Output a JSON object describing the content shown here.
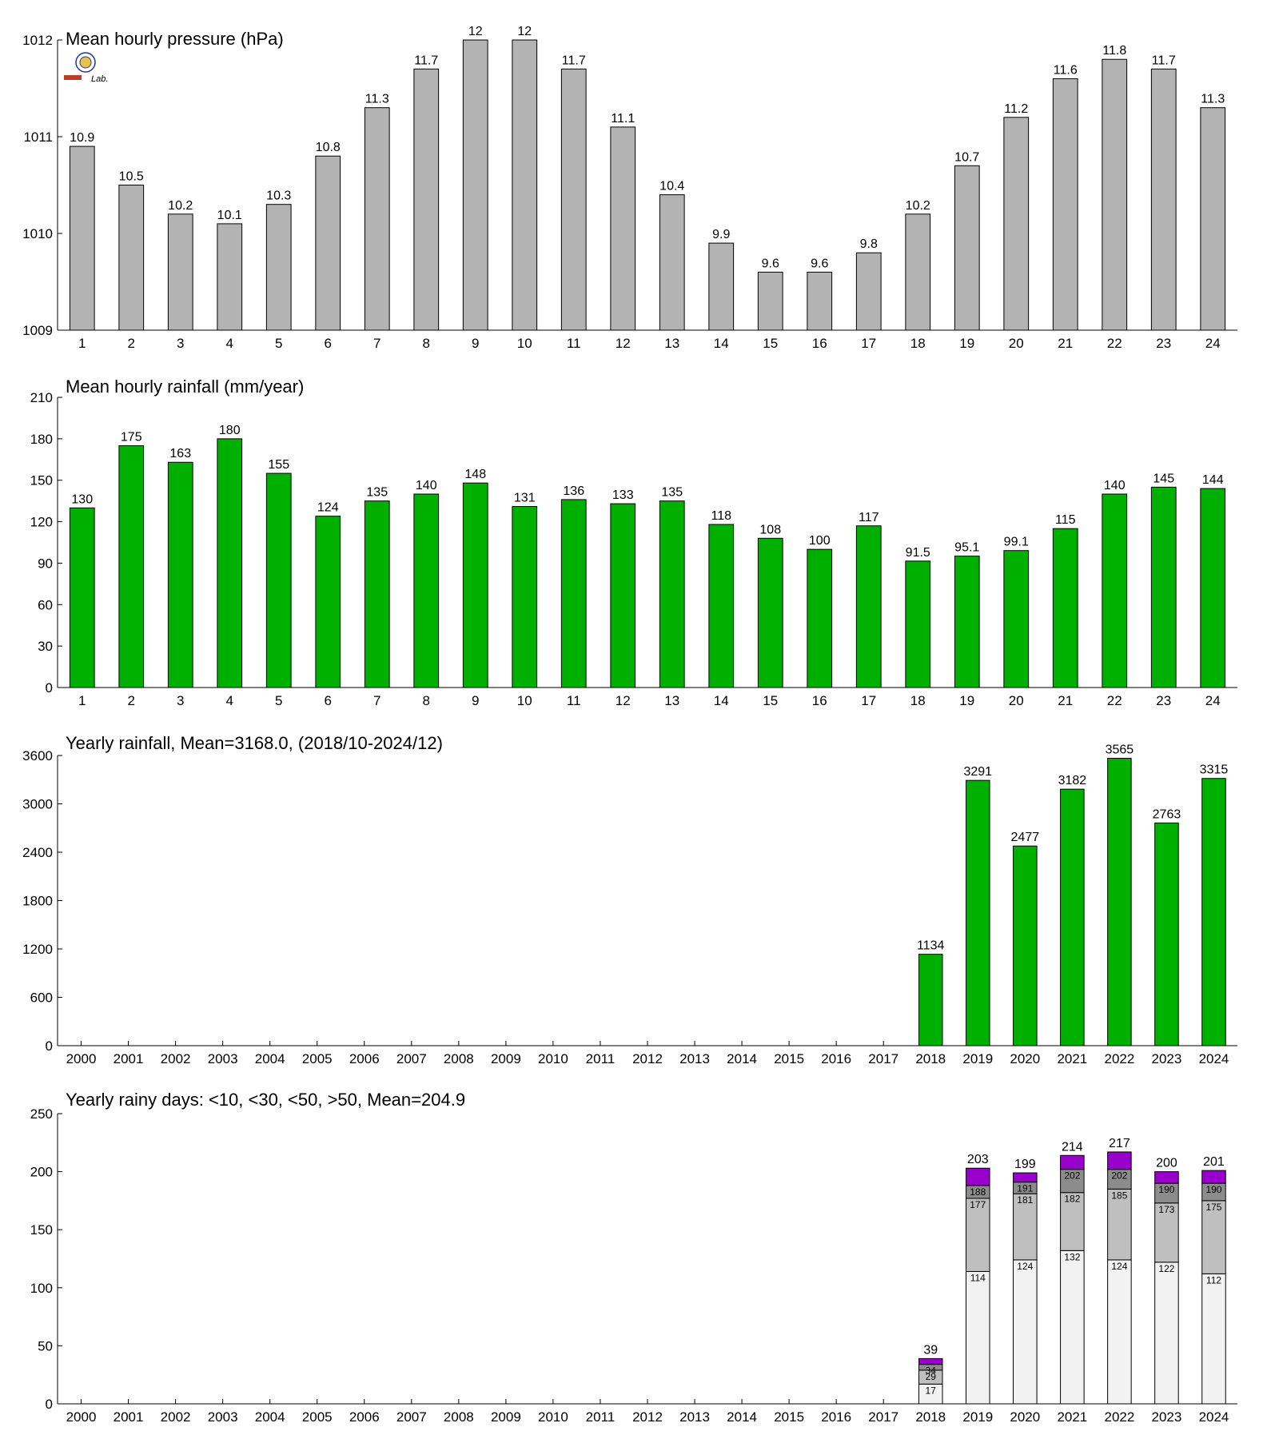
{
  "colors": {
    "pressure_bar": "#b3b3b3",
    "rain_bar": "#00b000",
    "days_lt10": "#f2f2f2",
    "days_lt30": "#bfbfbf",
    "days_lt50": "#8c8c8c",
    "days_gt50": "#9900cc",
    "outline": "#000000"
  },
  "logo": {
    "icon": "lab-seal-icon",
    "text": "Lab."
  },
  "chart_data": [
    {
      "id": "pressure",
      "type": "bar",
      "title": "Mean hourly pressure (hPa)",
      "categories": [
        "1",
        "2",
        "3",
        "4",
        "5",
        "6",
        "7",
        "8",
        "9",
        "10",
        "11",
        "12",
        "13",
        "14",
        "15",
        "16",
        "17",
        "18",
        "19",
        "20",
        "21",
        "22",
        "23",
        "24"
      ],
      "values": [
        1010.9,
        1010.5,
        1010.2,
        1010.1,
        1010.3,
        1010.8,
        1011.3,
        1011.7,
        1012.0,
        1012.0,
        1011.7,
        1011.1,
        1010.4,
        1009.9,
        1009.6,
        1009.6,
        1009.8,
        1010.2,
        1010.7,
        1011.2,
        1011.6,
        1011.8,
        1011.7,
        1011.3
      ],
      "labels": [
        "10.9",
        "10.5",
        "10.2",
        "10.1",
        "10.3",
        "10.8",
        "11.3",
        "11.7",
        "12",
        "12",
        "11.7",
        "11.1",
        "10.4",
        "9.9",
        "9.6",
        "9.6",
        "9.8",
        "10.2",
        "10.7",
        "11.2",
        "11.6",
        "11.8",
        "11.7",
        "11.3"
      ],
      "ylim": [
        1009,
        1012
      ],
      "yticks": [
        1009,
        1010,
        1011,
        1012
      ],
      "ytick_labels": [
        "1009",
        "1010",
        "1011",
        "1012"
      ],
      "xlabel": "",
      "ylabel": "",
      "grid": false
    },
    {
      "id": "hourly_rain",
      "type": "bar",
      "title": "Mean hourly rainfall (mm/year)",
      "categories": [
        "1",
        "2",
        "3",
        "4",
        "5",
        "6",
        "7",
        "8",
        "9",
        "10",
        "11",
        "12",
        "13",
        "14",
        "15",
        "16",
        "17",
        "18",
        "19",
        "20",
        "21",
        "22",
        "23",
        "24"
      ],
      "values": [
        130,
        175,
        163,
        180,
        155,
        124,
        135,
        140,
        148,
        131,
        136,
        133,
        135,
        118,
        108,
        100,
        117,
        91.5,
        95.1,
        99.1,
        115,
        140,
        145,
        144
      ],
      "labels": [
        "130",
        "175",
        "163",
        "180",
        "155",
        "124",
        "135",
        "140",
        "148",
        "131",
        "136",
        "133",
        "135",
        "118",
        "108",
        "100",
        "117",
        "91.5",
        "95.1",
        "99.1",
        "115",
        "140",
        "145",
        "144"
      ],
      "ylim": [
        0,
        210
      ],
      "yticks": [
        0,
        30,
        60,
        90,
        120,
        150,
        180,
        210
      ],
      "ytick_labels": [
        "0",
        "30",
        "60",
        "90",
        "120",
        "150",
        "180",
        "210"
      ],
      "xlabel": "",
      "ylabel": "",
      "grid": false
    },
    {
      "id": "yearly_rain",
      "type": "bar",
      "title": "Yearly rainfall, Mean=3168.0, (2018/10-2024/12)",
      "categories": [
        "2000",
        "2001",
        "2002",
        "2003",
        "2004",
        "2005",
        "2006",
        "2007",
        "2008",
        "2009",
        "2010",
        "2011",
        "2012",
        "2013",
        "2014",
        "2015",
        "2016",
        "2017",
        "2018",
        "2019",
        "2020",
        "2021",
        "2022",
        "2023",
        "2024"
      ],
      "values": [
        null,
        null,
        null,
        null,
        null,
        null,
        null,
        null,
        null,
        null,
        null,
        null,
        null,
        null,
        null,
        null,
        null,
        null,
        1134,
        3291,
        2477,
        3182,
        3565,
        2763,
        3315
      ],
      "labels": [
        "",
        "",
        "",
        "",
        "",
        "",
        "",
        "",
        "",
        "",
        "",
        "",
        "",
        "",
        "",
        "",
        "",
        "",
        "1134",
        "3291",
        "2477",
        "3182",
        "3565",
        "2763",
        "3315"
      ],
      "ylim": [
        0,
        3600
      ],
      "yticks": [
        0,
        600,
        1200,
        1800,
        2400,
        3000,
        3600
      ],
      "ytick_labels": [
        "0",
        "600",
        "1200",
        "1800",
        "2400",
        "3000",
        "3600"
      ],
      "xlabel": "",
      "ylabel": "",
      "grid": false
    },
    {
      "id": "rainy_days",
      "type": "bar",
      "stacked": true,
      "title": "Yearly rainy days: <10, <30, <50, >50, Mean=204.9",
      "categories": [
        "2000",
        "2001",
        "2002",
        "2003",
        "2004",
        "2005",
        "2006",
        "2007",
        "2008",
        "2009",
        "2010",
        "2011",
        "2012",
        "2013",
        "2014",
        "2015",
        "2016",
        "2017",
        "2018",
        "2019",
        "2020",
        "2021",
        "2022",
        "2023",
        "2024"
      ],
      "cumulative": {
        "lt10": [
          null,
          null,
          null,
          null,
          null,
          null,
          null,
          null,
          null,
          null,
          null,
          null,
          null,
          null,
          null,
          null,
          null,
          null,
          17,
          114,
          124,
          132,
          124,
          122,
          112
        ],
        "lt30": [
          null,
          null,
          null,
          null,
          null,
          null,
          null,
          null,
          null,
          null,
          null,
          null,
          null,
          null,
          null,
          null,
          null,
          null,
          29,
          177,
          181,
          182,
          185,
          173,
          175
        ],
        "lt50": [
          null,
          null,
          null,
          null,
          null,
          null,
          null,
          null,
          null,
          null,
          null,
          null,
          null,
          null,
          null,
          null,
          null,
          null,
          34,
          188,
          191,
          202,
          202,
          190,
          190
        ],
        "total": [
          null,
          null,
          null,
          null,
          null,
          null,
          null,
          null,
          null,
          null,
          null,
          null,
          null,
          null,
          null,
          null,
          null,
          null,
          39,
          203,
          199,
          214,
          217,
          200,
          201
        ]
      },
      "labels": {
        "lt10": [
          "",
          "",
          "",
          "",
          "",
          "",
          "",
          "",
          "",
          "",
          "",
          "",
          "",
          "",
          "",
          "",
          "",
          "",
          "17",
          "114",
          "124",
          "132",
          "124",
          "122",
          "112"
        ],
        "lt30": [
          "",
          "",
          "",
          "",
          "",
          "",
          "",
          "",
          "",
          "",
          "",
          "",
          "",
          "",
          "",
          "",
          "",
          "",
          "29",
          "177",
          "181",
          "182",
          "185",
          "173",
          "175"
        ],
        "lt50": [
          "",
          "",
          "",
          "",
          "",
          "",
          "",
          "",
          "",
          "",
          "",
          "",
          "",
          "",
          "",
          "",
          "",
          "",
          "34",
          "188",
          "191",
          "202",
          "202",
          "190",
          "190"
        ],
        "total": [
          "",
          "",
          "",
          "",
          "",
          "",
          "",
          "",
          "",
          "",
          "",
          "",
          "",
          "",
          "",
          "",
          "",
          "",
          "39",
          "203",
          "199",
          "214",
          "217",
          "200",
          "201"
        ]
      },
      "ylim": [
        0,
        250
      ],
      "yticks": [
        0,
        50,
        100,
        150,
        200,
        250
      ],
      "ytick_labels": [
        "0",
        "50",
        "100",
        "150",
        "200",
        "250"
      ],
      "xlabel": "",
      "ylabel": "",
      "grid": false
    }
  ]
}
